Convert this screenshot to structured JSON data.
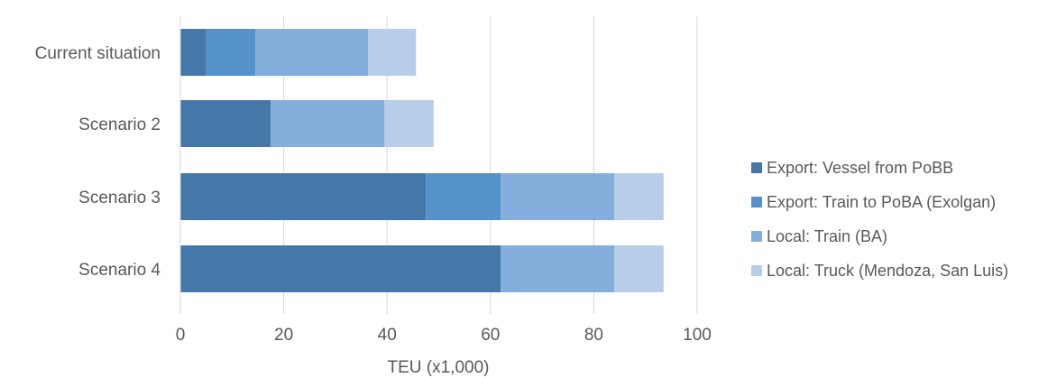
{
  "chart_data": {
    "type": "bar",
    "orientation": "horizontal",
    "stacked": true,
    "categories": [
      "Current situation",
      "Scenario 2",
      "Scenario 3",
      "Scenario 4"
    ],
    "series": [
      {
        "name": "Export: Vessel from PoBB",
        "color": "#4677A9",
        "values": [
          5,
          17.5,
          47.5,
          62
        ]
      },
      {
        "name": "Export: Train to PoBA (Exolgan)",
        "color": "#5591CA",
        "values": [
          9.5,
          0,
          14.5,
          0
        ]
      },
      {
        "name": "Local: Train (BA)",
        "color": "#84AEDB",
        "values": [
          21.8,
          22,
          22,
          22
        ]
      },
      {
        "name": "Local: Truck (Mendoza, San Luis)",
        "color": "#B8CDE8",
        "values": [
          9.3,
          9.5,
          9.5,
          9.5
        ]
      }
    ],
    "xlabel": "TEU (x1,000)",
    "ylabel": "",
    "xlim": [
      0,
      100
    ],
    "xticks": [
      0,
      20,
      40,
      60,
      80,
      100
    ],
    "grid": "vertical",
    "legend": "right"
  }
}
